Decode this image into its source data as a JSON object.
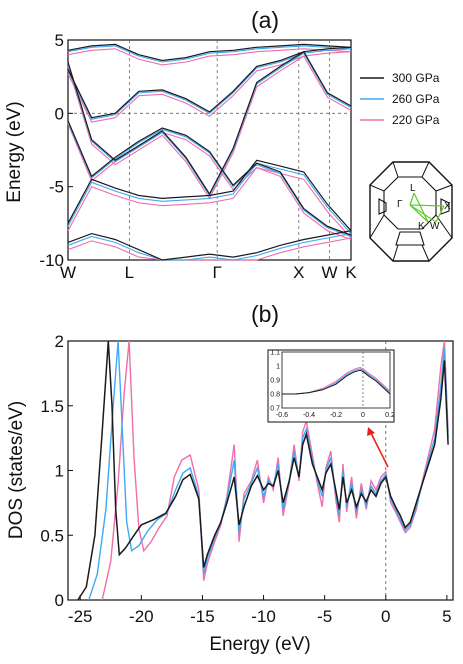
{
  "panels": {
    "a": "(a)",
    "b": "(b)"
  },
  "colors": {
    "300 GPa": "#1a1a1a",
    "260 GPa": "#3fa9f5",
    "220 GPa": "#f06ea9",
    "green": "#66cc33",
    "red": "#e8221b"
  },
  "chart_data": [
    {
      "type": "line",
      "panel": "(a)",
      "title": "",
      "ylabel": "Energy (eV)",
      "xlabel": "",
      "ylim": [
        -10,
        5
      ],
      "yticks": [
        "5",
        "0",
        "-5",
        "-10"
      ],
      "kpath": [
        "W",
        "L",
        "Γ",
        "X",
        "W",
        "K"
      ],
      "kpath_positions": [
        0,
        1,
        2.43,
        3.76,
        4.26,
        4.61
      ],
      "fermi_level": 0,
      "legend": {
        "position": "right",
        "entries": [
          "300 GPa",
          "260 GPa",
          "220 GPa"
        ]
      },
      "series": [
        {
          "name": "300 GPa",
          "bands": [
            [
              -8.8,
              -8.2,
              -8.6,
              -9.3,
              -10.0,
              -9.8,
              -9.6,
              -9.8,
              -9.5,
              -9.0,
              -8.6,
              -8.3,
              -8.0
            ],
            [
              -7.5,
              -4.5,
              -5.1,
              -5.6,
              -5.8,
              -5.7,
              -5.6,
              -5.3,
              -3.2,
              -3.6,
              -4.0,
              -6.2,
              -8.0
            ],
            [
              -0.5,
              -4.3,
              -3.0,
              -1.9,
              -1.0,
              -1.5,
              -2.6,
              -4.9,
              -3.4,
              -4.0,
              -6.5,
              -7.7,
              -8.3
            ],
            [
              3.5,
              -1.8,
              -3.2,
              -2.2,
              -1.2,
              -3.0,
              -5.5,
              -2.4,
              2.1,
              3.2,
              4.2,
              1.4,
              0.5
            ],
            [
              3.0,
              -0.3,
              0.0,
              1.5,
              1.6,
              1.0,
              0.1,
              1.5,
              3.2,
              3.6,
              4.2,
              4.4,
              4.5
            ],
            [
              4.3,
              4.6,
              4.7,
              4.0,
              3.6,
              3.8,
              4.2,
              4.3,
              4.5,
              4.6,
              4.7,
              4.6,
              4.5
            ]
          ]
        },
        {
          "name": "260 GPa",
          "bands": [
            [
              -9.0,
              -8.4,
              -8.8,
              -9.5,
              -10.0,
              -10.0,
              -9.8,
              -10.0,
              -9.7,
              -9.2,
              -8.8,
              -8.5,
              -8.2
            ],
            [
              -7.7,
              -4.7,
              -5.3,
              -5.8,
              -6.0,
              -5.9,
              -5.8,
              -5.5,
              -3.4,
              -3.8,
              -4.2,
              -6.4,
              -8.2
            ],
            [
              -0.6,
              -4.4,
              -3.1,
              -2.0,
              -1.1,
              -1.6,
              -2.7,
              -5.0,
              -3.5,
              -4.1,
              -6.6,
              -7.8,
              -8.4
            ],
            [
              3.4,
              -1.9,
              -3.3,
              -2.3,
              -1.3,
              -3.1,
              -5.6,
              -2.5,
              2.0,
              3.1,
              4.1,
              1.3,
              0.4
            ],
            [
              2.9,
              -0.4,
              -0.1,
              1.4,
              1.5,
              0.9,
              0.0,
              1.4,
              3.1,
              3.5,
              4.1,
              4.3,
              4.4
            ],
            [
              4.2,
              4.5,
              4.6,
              3.9,
              3.5,
              3.7,
              4.1,
              4.2,
              4.4,
              4.5,
              4.6,
              4.5,
              4.4
            ]
          ]
        },
        {
          "name": "220 GPa",
          "bands": [
            [
              -9.3,
              -8.7,
              -9.1,
              -9.8,
              -10.0,
              -10.0,
              -10.0,
              -10.0,
              -10.0,
              -9.5,
              -9.1,
              -8.8,
              -8.5
            ],
            [
              -8.0,
              -5.0,
              -5.6,
              -6.1,
              -6.3,
              -6.2,
              -6.1,
              -5.8,
              -3.7,
              -4.1,
              -4.5,
              -6.7,
              -8.5
            ],
            [
              -0.7,
              -4.6,
              -3.3,
              -2.2,
              -1.3,
              -1.8,
              -2.9,
              -5.2,
              -3.7,
              -4.3,
              -6.8,
              -8.0,
              -8.6
            ],
            [
              3.2,
              -2.1,
              -3.5,
              -2.5,
              -1.5,
              -3.3,
              -5.8,
              -2.7,
              1.8,
              2.9,
              3.9,
              1.1,
              0.2
            ],
            [
              2.7,
              -0.6,
              -0.3,
              1.2,
              1.3,
              0.7,
              -0.2,
              1.2,
              2.9,
              3.3,
              3.9,
              4.1,
              4.2
            ],
            [
              4.0,
              4.3,
              4.4,
              3.7,
              3.3,
              3.5,
              3.9,
              4.0,
              4.2,
              4.3,
              4.4,
              4.3,
              4.2
            ]
          ]
        }
      ],
      "bz_labels": [
        "L",
        "Γ",
        "X",
        "K",
        "W"
      ]
    },
    {
      "type": "line",
      "panel": "(b)",
      "title": "",
      "xlabel": "Energy (eV)",
      "ylabel": "DOS (states/eV)",
      "xlim": [
        -26,
        5.5
      ],
      "ylim": [
        0,
        2
      ],
      "xticks": [
        "-25",
        "-20",
        "-15",
        "-10",
        "-5",
        "0",
        "5"
      ],
      "yticks": [
        "0",
        "0.5",
        "1",
        "1.5",
        "2"
      ],
      "fermi_level": 0,
      "series": [
        {
          "name": "300 GPa",
          "x": [
            -25.2,
            -24.5,
            -23.8,
            -23.2,
            -22.7,
            -22.4,
            -22.1,
            -21.8,
            -21.3,
            -20.6,
            -20.0,
            -19.0,
            -18.0,
            -17.2,
            -16.6,
            -16.0,
            -15.3,
            -14.9,
            -14.6,
            -14.0,
            -13.5,
            -13.0,
            -12.4,
            -12.0,
            -11.6,
            -11.0,
            -10.5,
            -10.0,
            -9.6,
            -9.2,
            -8.8,
            -8.4,
            -7.9,
            -7.5,
            -7.1,
            -6.8,
            -6.5,
            -6.0,
            -5.6,
            -5.2,
            -4.9,
            -4.5,
            -4.1,
            -3.8,
            -3.5,
            -3.2,
            -2.8,
            -2.4,
            -2.0,
            -1.6,
            -1.2,
            -0.8,
            -0.4,
            0.0,
            0.4,
            0.8,
            1.2,
            1.6,
            2.0,
            2.5,
            3.0,
            3.5,
            4.0,
            4.5,
            4.8,
            5.1
          ],
          "y": [
            0.0,
            0.1,
            0.5,
            1.3,
            2.0,
            1.5,
            0.7,
            0.35,
            0.4,
            0.5,
            0.58,
            0.62,
            0.67,
            0.8,
            0.93,
            0.97,
            0.78,
            0.25,
            0.35,
            0.5,
            0.6,
            0.75,
            0.95,
            0.58,
            0.72,
            0.88,
            0.96,
            0.85,
            0.9,
            0.88,
            1.0,
            0.75,
            0.92,
            1.1,
            0.95,
            1.2,
            1.28,
            1.05,
            0.95,
            0.85,
            0.98,
            1.05,
            0.85,
            0.7,
            0.95,
            0.75,
            0.85,
            0.72,
            0.82,
            0.76,
            0.85,
            0.8,
            0.9,
            0.95,
            0.8,
            0.72,
            0.65,
            0.56,
            0.6,
            0.75,
            0.9,
            1.05,
            1.2,
            1.55,
            1.85,
            1.2
          ]
        },
        {
          "name": "260 GPa",
          "x": [
            -24.3,
            -23.6,
            -22.9,
            -22.3,
            -21.9,
            -21.5,
            -21.2,
            -20.8,
            -20.2,
            -19.5,
            -18.7,
            -17.9,
            -17.2,
            -16.6,
            -16.0,
            -15.3,
            -14.9,
            -14.6,
            -14.0,
            -13.5,
            -13.0,
            -12.4,
            -12.0,
            -11.6,
            -11.0,
            -10.5,
            -10.0,
            -9.6,
            -9.2,
            -8.8,
            -8.4,
            -7.9,
            -7.5,
            -7.1,
            -6.8,
            -6.5,
            -6.0,
            -5.6,
            -5.2,
            -4.9,
            -4.5,
            -4.1,
            -3.8,
            -3.5,
            -3.2,
            -2.8,
            -2.4,
            -2.0,
            -1.6,
            -1.2,
            -0.8,
            -0.4,
            0.0,
            0.4,
            0.8,
            1.2,
            1.6,
            2.0,
            2.5,
            3.0,
            3.5,
            4.0,
            4.5,
            4.8,
            5.1
          ],
          "y": [
            0.0,
            0.2,
            0.7,
            1.5,
            2.0,
            1.2,
            0.6,
            0.38,
            0.42,
            0.53,
            0.62,
            0.67,
            0.85,
            0.98,
            1.02,
            0.8,
            0.2,
            0.32,
            0.48,
            0.6,
            0.78,
            1.08,
            0.52,
            0.78,
            0.9,
            1.02,
            0.8,
            0.92,
            0.88,
            1.05,
            0.7,
            0.92,
            1.15,
            0.95,
            1.25,
            1.32,
            1.08,
            0.93,
            0.8,
            1.0,
            1.1,
            0.82,
            0.65,
            1.0,
            0.72,
            0.9,
            0.68,
            0.85,
            0.73,
            0.88,
            0.82,
            0.92,
            0.97,
            0.78,
            0.7,
            0.62,
            0.54,
            0.58,
            0.72,
            0.9,
            1.08,
            1.25,
            1.65,
            1.95,
            1.25
          ]
        },
        {
          "name": "220 GPa",
          "x": [
            -23.2,
            -22.5,
            -21.9,
            -21.4,
            -21.0,
            -20.6,
            -20.2,
            -19.8,
            -19.2,
            -18.6,
            -17.9,
            -17.3,
            -16.7,
            -16.0,
            -15.3,
            -14.9,
            -14.6,
            -14.0,
            -13.5,
            -13.0,
            -12.4,
            -12.0,
            -11.6,
            -11.0,
            -10.5,
            -10.0,
            -9.6,
            -9.2,
            -8.8,
            -8.4,
            -7.9,
            -7.5,
            -7.1,
            -6.8,
            -6.5,
            -6.0,
            -5.6,
            -5.2,
            -4.9,
            -4.5,
            -4.1,
            -3.8,
            -3.5,
            -3.2,
            -2.8,
            -2.4,
            -2.0,
            -1.6,
            -1.2,
            -0.8,
            -0.4,
            0.0,
            0.4,
            0.8,
            1.2,
            1.6,
            2.0,
            2.5,
            3.0,
            3.5,
            4.0,
            4.5,
            4.8,
            5.1
          ],
          "y": [
            0.0,
            0.3,
            0.9,
            1.6,
            2.0,
            1.1,
            0.55,
            0.38,
            0.45,
            0.55,
            0.65,
            0.95,
            1.08,
            1.12,
            0.85,
            0.15,
            0.28,
            0.45,
            0.58,
            0.8,
            1.2,
            0.45,
            0.82,
            0.92,
            1.08,
            0.75,
            0.95,
            0.85,
            1.1,
            0.65,
            0.9,
            1.2,
            0.92,
            1.3,
            1.38,
            1.12,
            0.9,
            0.72,
            1.02,
            1.15,
            0.78,
            0.6,
            1.05,
            0.68,
            0.95,
            0.63,
            0.9,
            0.7,
            0.92,
            0.85,
            0.95,
            0.99,
            0.75,
            0.68,
            0.6,
            0.52,
            0.56,
            0.7,
            0.92,
            1.12,
            1.32,
            1.8,
            2.0,
            1.3
          ]
        }
      ],
      "inset": {
        "xlim": [
          -0.6,
          0.2
        ],
        "ylim": [
          0.7,
          1.1
        ],
        "xticks": [
          "-0.6",
          "-0.4",
          "-0.2",
          "0",
          "0.2"
        ],
        "yticks": [
          "0.7",
          "0.8",
          "0.9",
          "1",
          "1.1"
        ],
        "series": [
          {
            "name": "300 GPa",
            "x": [
              -0.6,
              -0.5,
              -0.4,
              -0.3,
              -0.2,
              -0.12,
              -0.06,
              -0.02,
              0.0,
              0.04,
              0.1,
              0.2
            ],
            "y": [
              0.8,
              0.8,
              0.81,
              0.83,
              0.87,
              0.93,
              0.96,
              0.97,
              0.96,
              0.93,
              0.89,
              0.8
            ]
          },
          {
            "name": "260 GPa",
            "x": [
              -0.6,
              -0.5,
              -0.4,
              -0.3,
              -0.2,
              -0.12,
              -0.06,
              -0.02,
              0.0,
              0.04,
              0.1,
              0.2
            ],
            "y": [
              0.8,
              0.8,
              0.81,
              0.83,
              0.88,
              0.94,
              0.97,
              0.98,
              0.97,
              0.94,
              0.9,
              0.81
            ]
          },
          {
            "name": "220 GPa",
            "x": [
              -0.6,
              -0.5,
              -0.4,
              -0.3,
              -0.2,
              -0.12,
              -0.06,
              -0.02,
              0.0,
              0.04,
              0.1,
              0.2
            ],
            "y": [
              0.8,
              0.8,
              0.81,
              0.84,
              0.89,
              0.95,
              0.98,
              0.99,
              0.98,
              0.95,
              0.91,
              0.82
            ]
          }
        ]
      }
    }
  ]
}
